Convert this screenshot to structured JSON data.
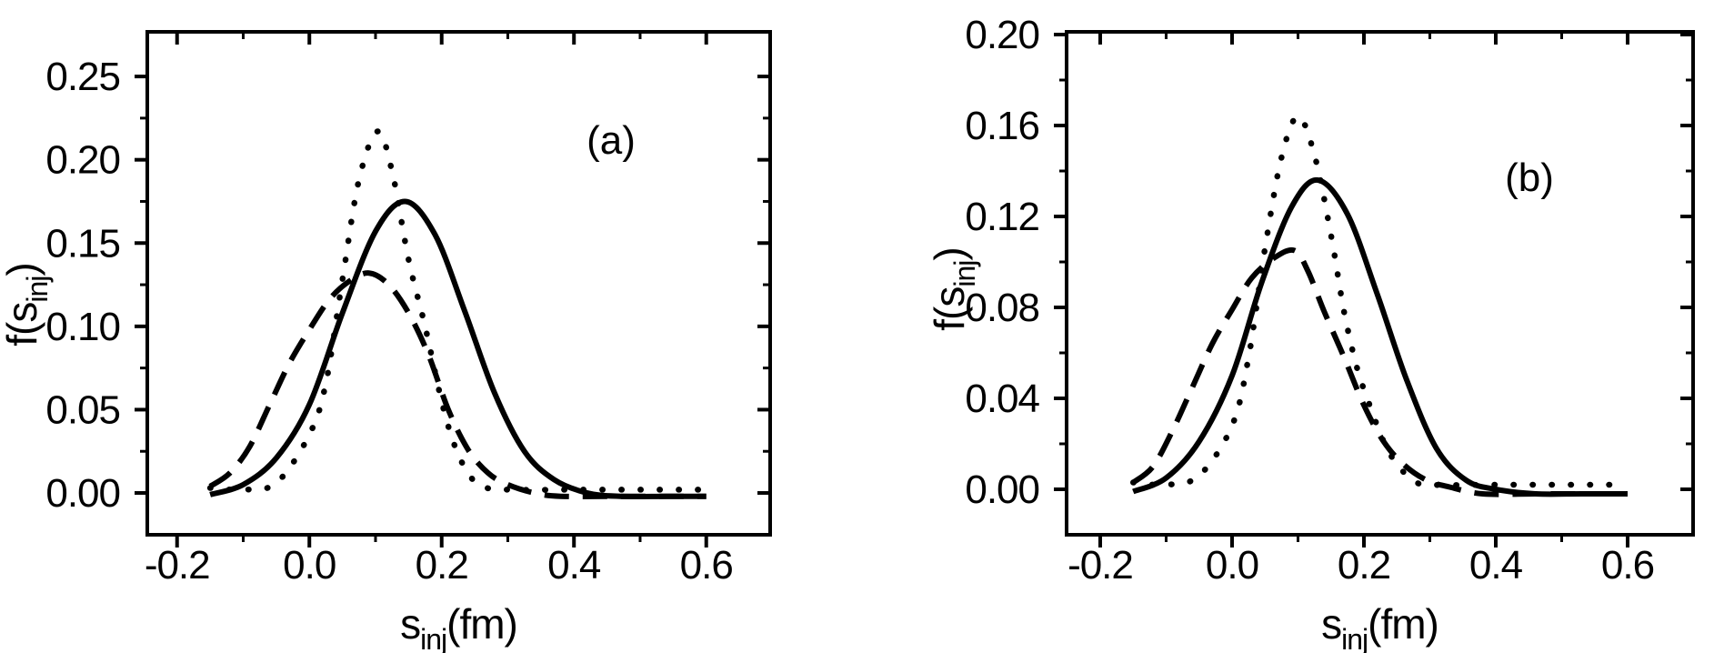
{
  "figure": {
    "background": "#ffffff",
    "ink_color": "#000000",
    "description": "Two-panel line figure: distributions f(s_inj) versus s_inj in fm, panels (a) and (b), each with a solid, a dashed and a dotted curve"
  },
  "chart_data": [
    {
      "type": "line",
      "panel_label": "(a)",
      "xlabel": "s_inj(fm)",
      "ylabel": "f(s_inj)",
      "xlabel_parts": {
        "base": "s",
        "sub": "inj",
        "rest": "(fm)"
      },
      "ylabel_parts": {
        "base": "f(s",
        "sub": "inj",
        "rest": ")"
      },
      "xlim": [
        -0.245,
        0.6966
      ],
      "ylim": [
        -0.0251,
        0.2768
      ],
      "x_major_ticks": [
        -0.2,
        0.0,
        0.2,
        0.4,
        0.6
      ],
      "x_tick_labels": [
        "-0.2",
        "0.0",
        "0.2",
        "0.4",
        "0.6"
      ],
      "x_minor_ticks": [
        -0.1,
        0.1,
        0.3,
        0.5
      ],
      "y_major_ticks": [
        0.0,
        0.05,
        0.1,
        0.15,
        0.2,
        0.25
      ],
      "y_tick_labels": [
        "0.00",
        "0.05",
        "0.10",
        "0.15",
        "0.20",
        "0.25"
      ],
      "y_minor_ticks": [
        0.025,
        0.075,
        0.125,
        0.175,
        0.225
      ],
      "grid": false,
      "legend": null,
      "series": [
        {
          "name": "dashed-curve",
          "line_style": "dashed",
          "peak": {
            "x": 0.09,
            "y": 0.132
          },
          "points": [
            [
              -0.15,
              0.004
            ],
            [
              -0.12,
              0.012
            ],
            [
              -0.09,
              0.028
            ],
            [
              -0.06,
              0.053
            ],
            [
              -0.03,
              0.078
            ],
            [
              0.0,
              0.098
            ],
            [
              0.03,
              0.116
            ],
            [
              0.06,
              0.127
            ],
            [
              0.09,
              0.132
            ],
            [
              0.12,
              0.125
            ],
            [
              0.15,
              0.108
            ],
            [
              0.18,
              0.083
            ],
            [
              0.21,
              0.05
            ],
            [
              0.24,
              0.026
            ],
            [
              0.27,
              0.012
            ],
            [
              0.3,
              0.005
            ],
            [
              0.34,
              0.0
            ],
            [
              0.38,
              -0.002
            ],
            [
              0.46,
              -0.002
            ],
            [
              0.53,
              -0.002
            ],
            [
              0.6,
              -0.002
            ]
          ]
        },
        {
          "name": "solid-curve",
          "line_style": "solid",
          "peak": {
            "x": 0.145,
            "y": 0.175
          },
          "points": [
            [
              -0.15,
              -0.001
            ],
            [
              -0.1,
              0.005
            ],
            [
              -0.05,
              0.021
            ],
            [
              0.0,
              0.053
            ],
            [
              0.05,
              0.108
            ],
            [
              0.1,
              0.157
            ],
            [
              0.145,
              0.175
            ],
            [
              0.19,
              0.155
            ],
            [
              0.235,
              0.109
            ],
            [
              0.28,
              0.06
            ],
            [
              0.325,
              0.025
            ],
            [
              0.37,
              0.008
            ],
            [
              0.42,
              0.0
            ],
            [
              0.47,
              -0.002
            ],
            [
              0.54,
              -0.002
            ],
            [
              0.6,
              -0.002
            ]
          ]
        },
        {
          "name": "dotted-curve",
          "line_style": "dotted",
          "peak": {
            "x": 0.103,
            "y": 0.217
          },
          "points": [
            [
              -0.15,
              0.003
            ],
            [
              -0.1,
              0.002
            ],
            [
              -0.05,
              0.006
            ],
            [
              0.0,
              0.035
            ],
            [
              0.025,
              0.066
            ],
            [
              0.05,
              0.128
            ],
            [
              0.075,
              0.188
            ],
            [
              0.103,
              0.217
            ],
            [
              0.125,
              0.193
            ],
            [
              0.15,
              0.14
            ],
            [
              0.175,
              0.1
            ],
            [
              0.2,
              0.055
            ],
            [
              0.22,
              0.028
            ],
            [
              0.24,
              0.012
            ],
            [
              0.26,
              0.004
            ],
            [
              0.3,
              0.002
            ],
            [
              0.4,
              0.002
            ],
            [
              0.5,
              0.002
            ],
            [
              0.6,
              0.002
            ]
          ]
        }
      ]
    },
    {
      "type": "line",
      "panel_label": "(b)",
      "xlabel": "s_inj(fm)",
      "ylabel": "f(s_inj)",
      "xlabel_parts": {
        "base": "s",
        "sub": "inj",
        "rest": "(fm)"
      },
      "ylabel_parts": {
        "base": "f(s",
        "sub": "inj",
        "rest": ")"
      },
      "xlim": [
        -0.251,
        0.6993
      ],
      "ylim": [
        -0.02,
        0.2012
      ],
      "x_major_ticks": [
        -0.2,
        0.0,
        0.2,
        0.4,
        0.6
      ],
      "x_tick_labels": [
        "-0.2",
        "0.0",
        "0.2",
        "0.4",
        "0.6"
      ],
      "x_minor_ticks": [
        -0.1,
        0.1,
        0.3,
        0.5
      ],
      "y_major_ticks": [
        0.0,
        0.04,
        0.08,
        0.12,
        0.16,
        0.2
      ],
      "y_tick_labels": [
        "0.00",
        "0.04",
        "0.08",
        "0.12",
        "0.16",
        "0.20"
      ],
      "y_minor_ticks": [
        0.02,
        0.06,
        0.1,
        0.14,
        0.18
      ],
      "grid": false,
      "legend": null,
      "series": [
        {
          "name": "dashed-curve",
          "line_style": "dashed",
          "peak": {
            "x": 0.095,
            "y": 0.105
          },
          "points": [
            [
              -0.15,
              0.003
            ],
            [
              -0.12,
              0.01
            ],
            [
              -0.09,
              0.026
            ],
            [
              -0.06,
              0.045
            ],
            [
              -0.03,
              0.064
            ],
            [
              0.0,
              0.079
            ],
            [
              0.03,
              0.093
            ],
            [
              0.065,
              0.102
            ],
            [
              0.095,
              0.105
            ],
            [
              0.115,
              0.096
            ],
            [
              0.14,
              0.078
            ],
            [
              0.17,
              0.058
            ],
            [
              0.2,
              0.037
            ],
            [
              0.23,
              0.021
            ],
            [
              0.26,
              0.011
            ],
            [
              0.295,
              0.004
            ],
            [
              0.33,
              0.001
            ],
            [
              0.38,
              -0.002
            ],
            [
              0.46,
              -0.002
            ],
            [
              0.53,
              -0.002
            ],
            [
              0.6,
              -0.002
            ]
          ]
        },
        {
          "name": "solid-curve",
          "line_style": "solid",
          "peak": {
            "x": 0.13,
            "y": 0.136
          },
          "points": [
            [
              -0.15,
              -0.001
            ],
            [
              -0.1,
              0.005
            ],
            [
              -0.05,
              0.021
            ],
            [
              0.0,
              0.05
            ],
            [
              0.045,
              0.091
            ],
            [
              0.09,
              0.124
            ],
            [
              0.13,
              0.136
            ],
            [
              0.175,
              0.121
            ],
            [
              0.22,
              0.086
            ],
            [
              0.265,
              0.048
            ],
            [
              0.31,
              0.018
            ],
            [
              0.355,
              0.004
            ],
            [
              0.4,
              0.0
            ],
            [
              0.46,
              -0.002
            ],
            [
              0.53,
              -0.002
            ],
            [
              0.6,
              -0.002
            ]
          ]
        },
        {
          "name": "dotted-curve",
          "line_style": "dotted",
          "peak": {
            "x": 0.1,
            "y": 0.164
          },
          "points": [
            [
              -0.15,
              0.003
            ],
            [
              -0.1,
              0.002
            ],
            [
              -0.05,
              0.006
            ],
            [
              0.0,
              0.028
            ],
            [
              0.025,
              0.058
            ],
            [
              0.05,
              0.106
            ],
            [
              0.075,
              0.146
            ],
            [
              0.1,
              0.164
            ],
            [
              0.125,
              0.147
            ],
            [
              0.15,
              0.112
            ],
            [
              0.17,
              0.078
            ],
            [
              0.19,
              0.053
            ],
            [
              0.21,
              0.036
            ],
            [
              0.23,
              0.021
            ],
            [
              0.25,
              0.011
            ],
            [
              0.275,
              0.004
            ],
            [
              0.3,
              0.002
            ],
            [
              0.4,
              0.002
            ],
            [
              0.5,
              0.002
            ],
            [
              0.6,
              0.002
            ]
          ]
        }
      ]
    }
  ]
}
